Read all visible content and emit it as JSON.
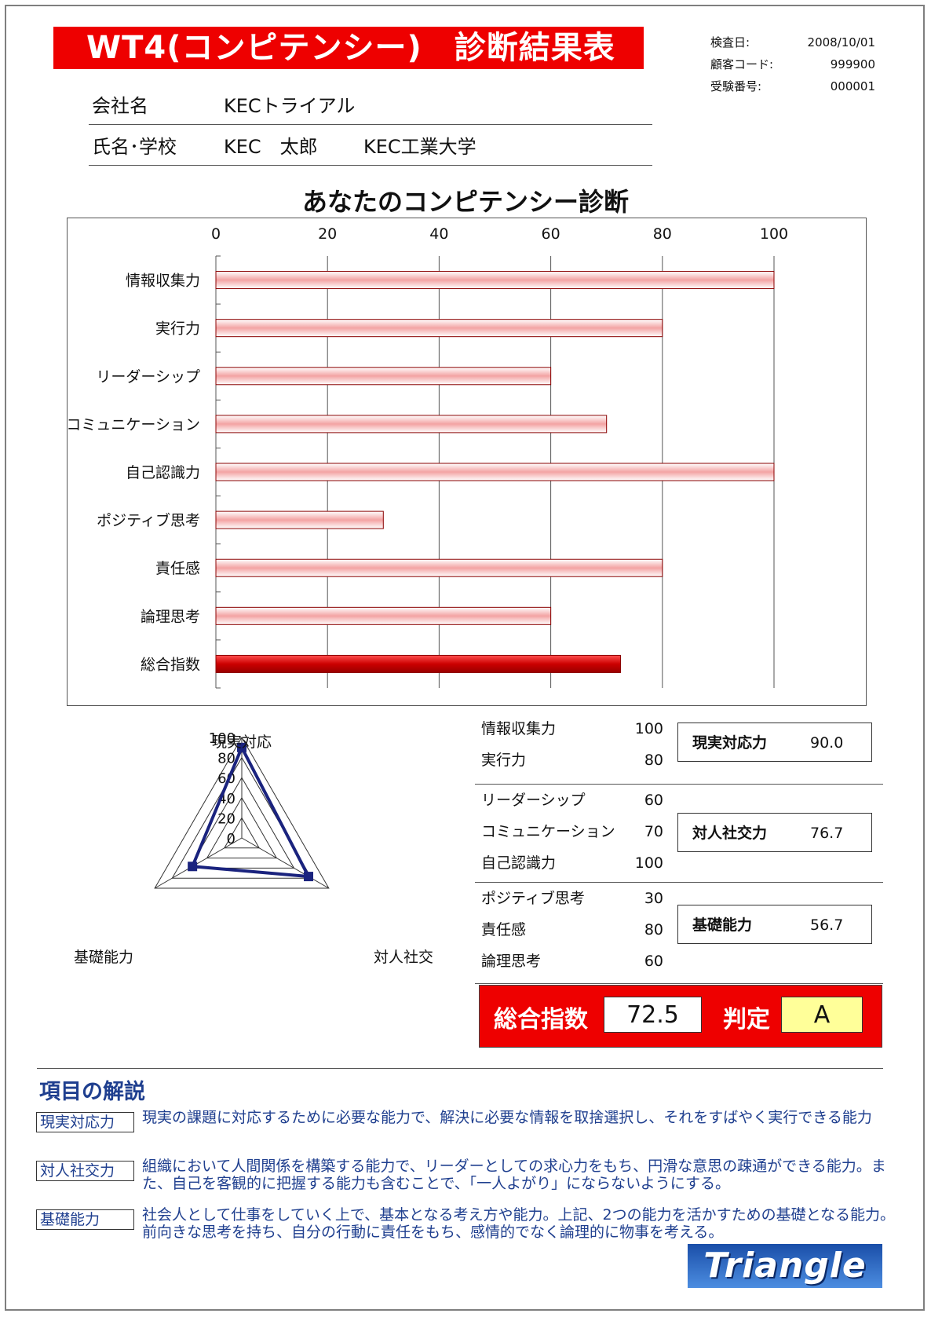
{
  "title": "WT4(コンピテンシー)　診断結果表",
  "meta": [
    {
      "label": "検査日:",
      "value": "2008/10/01"
    },
    {
      "label": "顧客コード:",
      "value": "999900"
    },
    {
      "label": "受験番号:",
      "value": "000001"
    }
  ],
  "company": {
    "label": "会社名",
    "value": "KECトライアル"
  },
  "person": {
    "label": "氏名･学校",
    "name": "KEC　太郎",
    "school": "KEC工業大学"
  },
  "chart_title": "あなたのコンピテンシー診断",
  "chart_data": [
    {
      "type": "bar",
      "orientation": "horizontal",
      "title": "あなたのコンピテンシー診断",
      "categories": [
        "情報収集力",
        "実行力",
        "リーダーシップ",
        "コミュニケーション",
        "自己認識力",
        "ポジティブ思考",
        "責任感",
        "論理思考",
        "総合指数"
      ],
      "values": [
        100,
        80,
        60,
        70,
        100,
        30,
        80,
        60,
        72.5
      ],
      "xlim": [
        0,
        100
      ],
      "ticks": [
        0,
        20,
        40,
        60,
        80,
        100
      ],
      "grid": true,
      "colors": {
        "bar": "#f3a3a3",
        "total_bar": "#cc0000"
      }
    },
    {
      "type": "radar",
      "axes": [
        "現実対応",
        "対人社交",
        "基礎能力"
      ],
      "values": [
        90.0,
        76.7,
        56.7
      ],
      "rlim": [
        0,
        100
      ],
      "ticks": [
        0,
        20,
        40,
        60,
        80,
        100
      ],
      "colors": {
        "line": "#1a237e"
      }
    }
  ],
  "scores": [
    {
      "items": [
        {
          "name": "情報収集力",
          "value": "100"
        },
        {
          "name": "実行力",
          "value": "80"
        }
      ],
      "summary": {
        "name": "現実対応力",
        "value": "90.0"
      }
    },
    {
      "items": [
        {
          "name": "リーダーシップ",
          "value": "60"
        },
        {
          "name": "コミュニケーション",
          "value": "70"
        },
        {
          "name": "自己認識力",
          "value": "100"
        }
      ],
      "summary": {
        "name": "対人社交力",
        "value": "76.7"
      }
    },
    {
      "items": [
        {
          "name": "ポジティブ思考",
          "value": "30"
        },
        {
          "name": "責任感",
          "value": "80"
        },
        {
          "name": "論理思考",
          "value": "60"
        }
      ],
      "summary": {
        "name": "基礎能力",
        "value": "56.7"
      }
    }
  ],
  "total": {
    "label": "総合指数",
    "value": "72.5",
    "judge_label": "判定",
    "judge_value": "A"
  },
  "explanation": {
    "title": "項目の解説",
    "items": [
      {
        "term": "現実対応力",
        "desc": "現実の課題に対応するために必要な能力で、解決に必要な情報を取捨選択し、それをすばやく実行できる能力"
      },
      {
        "term": "対人社交力",
        "desc": "組織において人間関係を構築する能力で、リーダーとしての求心力をもち、円滑な意思の疎通ができる能力。また、自己を客観的に把握する能力も含むことで、「一人よがり」にならないようにする。"
      },
      {
        "term": "基礎能力",
        "desc": "社会人として仕事をしていく上で、基本となる考え方や能力。上記、2つの能力を活かすための基礎となる能力。前向きな思考を持ち、自分の行動に責任をもち、感情的でなく論理的に物事を考える。"
      }
    ]
  },
  "logo": "Triangle"
}
